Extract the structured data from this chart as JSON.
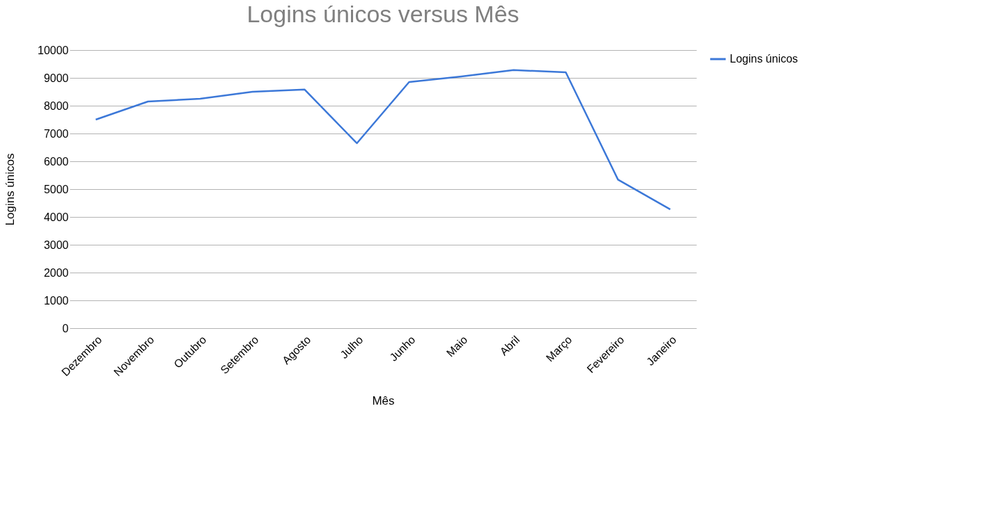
{
  "chart_data": {
    "type": "line",
    "title": "Logins únicos versus Mês",
    "xlabel": "Mês",
    "ylabel": "Logins únicos",
    "categories": [
      "Dezembro",
      "Novembro",
      "Outubro",
      "Setembro",
      "Agosto",
      "Julho",
      "Junho",
      "Maio",
      "Abril",
      "Março",
      "Fevereiro",
      "Janeiro"
    ],
    "series": [
      {
        "name": "Logins únicos",
        "color": "#3c78d8",
        "values": [
          7500,
          8150,
          8250,
          8500,
          8580,
          6650,
          8850,
          9050,
          9280,
          9200,
          5340,
          4270
        ]
      }
    ],
    "ylim": [
      0,
      10000
    ],
    "yticks": [
      0,
      1000,
      2000,
      3000,
      4000,
      5000,
      6000,
      7000,
      8000,
      9000,
      10000
    ],
    "grid": "y",
    "legend": "right",
    "marker": "none",
    "line_style": "solid"
  }
}
